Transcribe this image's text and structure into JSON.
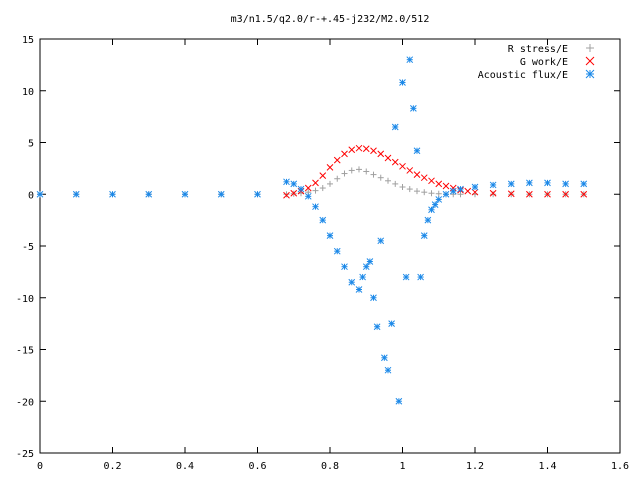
{
  "chart_data": {
    "type": "scatter",
    "title": "m3/n1.5/q2.0/r-+.45-j232/M2.0/512",
    "xlabel": "",
    "ylabel": "",
    "xlim": [
      0,
      1.6
    ],
    "ylim": [
      -25,
      15
    ],
    "x_ticks": [
      "0",
      "0.2",
      "0.4",
      "0.6",
      "0.8",
      "1",
      "1.2",
      "1.4",
      "1.6"
    ],
    "y_ticks": [
      "15",
      "10",
      "5",
      "0",
      "-5",
      "-10",
      "-15",
      "-20",
      "-25"
    ],
    "grid": false,
    "legend_position": "top-right",
    "series": [
      {
        "name": "R stress/E",
        "marker": "plus",
        "color": "#a0a0a0",
        "x": [
          0,
          0.1,
          0.2,
          0.3,
          0.4,
          0.5,
          0.6,
          0.68,
          0.7,
          0.72,
          0.74,
          0.76,
          0.78,
          0.8,
          0.82,
          0.84,
          0.86,
          0.88,
          0.9,
          0.92,
          0.94,
          0.96,
          0.98,
          1.0,
          1.02,
          1.04,
          1.06,
          1.08,
          1.1,
          1.12,
          1.14,
          1.16,
          1.2,
          1.25,
          1.3,
          1.35,
          1.4,
          1.45,
          1.5
        ],
        "y": [
          0,
          0,
          0,
          0,
          0,
          0,
          0,
          0,
          0.05,
          0.1,
          0.2,
          0.35,
          0.6,
          1.0,
          1.5,
          2.0,
          2.3,
          2.4,
          2.2,
          1.9,
          1.6,
          1.3,
          1.0,
          0.7,
          0.5,
          0.3,
          0.2,
          0.1,
          0.05,
          0,
          0,
          0,
          0,
          0,
          0,
          0,
          0,
          0,
          0
        ]
      },
      {
        "name": "G work/E",
        "marker": "cross",
        "color": "#ff0000",
        "x": [
          0.68,
          0.7,
          0.72,
          0.74,
          0.76,
          0.78,
          0.8,
          0.82,
          0.84,
          0.86,
          0.88,
          0.9,
          0.92,
          0.94,
          0.96,
          0.98,
          1.0,
          1.02,
          1.04,
          1.06,
          1.08,
          1.1,
          1.12,
          1.14,
          1.16,
          1.18,
          1.2,
          1.25,
          1.3,
          1.35,
          1.4,
          1.45,
          1.5
        ],
        "y": [
          -0.1,
          0.1,
          0.3,
          0.6,
          1.1,
          1.8,
          2.6,
          3.3,
          3.9,
          4.3,
          4.45,
          4.4,
          4.2,
          3.9,
          3.5,
          3.1,
          2.7,
          2.3,
          1.9,
          1.6,
          1.3,
          1.0,
          0.8,
          0.6,
          0.4,
          0.3,
          0.2,
          0.1,
          0.05,
          0,
          0,
          0,
          0
        ]
      },
      {
        "name": "Acoustic flux/E",
        "marker": "star",
        "color": "#1a88e8",
        "x": [
          0,
          0.1,
          0.2,
          0.3,
          0.4,
          0.5,
          0.6,
          0.68,
          0.7,
          0.72,
          0.74,
          0.76,
          0.78,
          0.8,
          0.82,
          0.84,
          0.86,
          0.88,
          0.89,
          0.9,
          0.91,
          0.92,
          0.93,
          0.94,
          0.95,
          0.96,
          0.97,
          0.98,
          0.99,
          1.0,
          1.01,
          1.02,
          1.03,
          1.04,
          1.05,
          1.06,
          1.07,
          1.08,
          1.09,
          1.1,
          1.12,
          1.14,
          1.16,
          1.2,
          1.25,
          1.3,
          1.35,
          1.4,
          1.45,
          1.5
        ],
        "y": [
          0,
          0,
          0,
          0,
          0,
          0,
          0,
          1.2,
          1.0,
          0.5,
          -0.2,
          -1.2,
          -2.5,
          -4.0,
          -5.5,
          -7.0,
          -8.5,
          -9.2,
          -8.0,
          -7.0,
          -6.5,
          -10.0,
          -12.8,
          -4.5,
          -15.8,
          -17.0,
          -12.5,
          6.5,
          -20.0,
          10.8,
          -8.0,
          13.0,
          8.3,
          4.2,
          -8.0,
          -4.0,
          -2.5,
          -1.5,
          -1.0,
          -0.5,
          0,
          0.3,
          0.5,
          0.7,
          0.9,
          1.0,
          1.1,
          1.1,
          1.0,
          1.0
        ]
      }
    ]
  }
}
